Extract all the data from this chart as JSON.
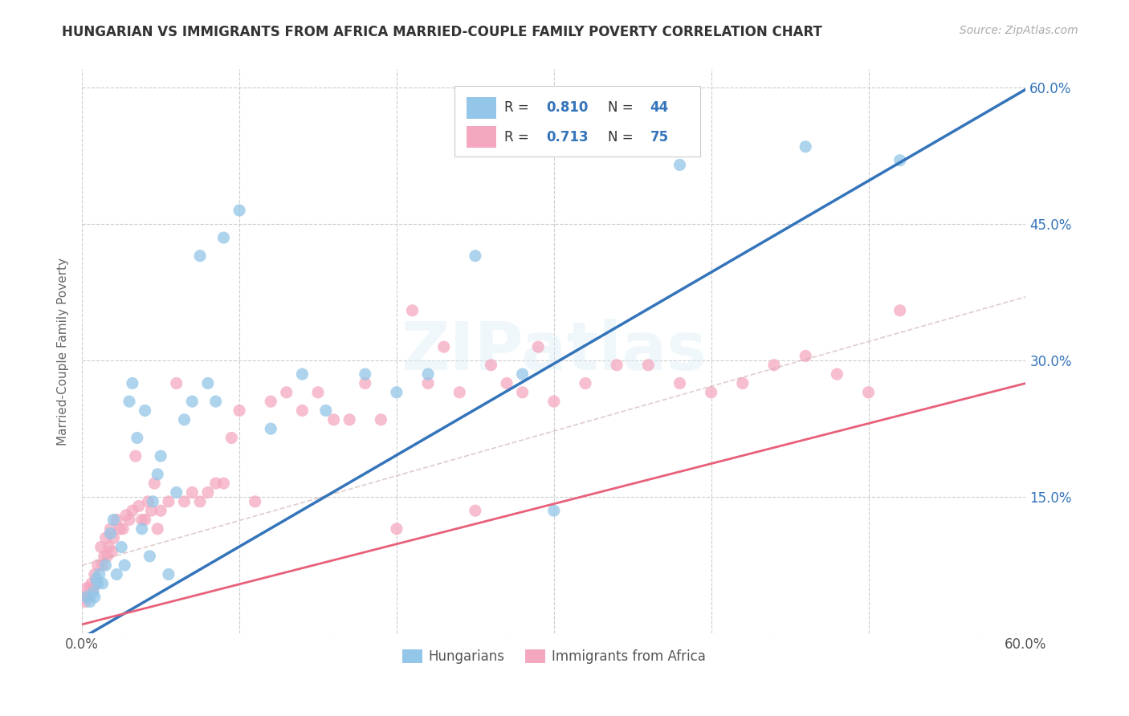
{
  "title": "HUNGARIAN VS IMMIGRANTS FROM AFRICA MARRIED-COUPLE FAMILY POVERTY CORRELATION CHART",
  "source": "Source: ZipAtlas.com",
  "ylabel": "Married-Couple Family Poverty",
  "xlim": [
    0,
    0.6
  ],
  "ylim": [
    0,
    0.62
  ],
  "x_ticks": [
    0.0,
    0.1,
    0.2,
    0.3,
    0.4,
    0.5,
    0.6
  ],
  "x_tick_labels": [
    "0.0%",
    "",
    "",
    "",
    "",
    "",
    "60.0%"
  ],
  "y_ticks": [
    0.0,
    0.15,
    0.3,
    0.45,
    0.6
  ],
  "y_tick_labels_right": [
    "",
    "15.0%",
    "30.0%",
    "45.0%",
    "60.0%"
  ],
  "grid_color": "#cccccc",
  "background_color": "#ffffff",
  "watermark": "ZIPatlas",
  "blue_color": "#93c6e8",
  "pink_color": "#f4a8c0",
  "blue_line_color": "#3474ba",
  "pink_line_color": "#e8607a",
  "blue_scatter_x": [
    0.003,
    0.005,
    0.007,
    0.008,
    0.009,
    0.01,
    0.011,
    0.013,
    0.015,
    0.018,
    0.02,
    0.022,
    0.025,
    0.027,
    0.03,
    0.032,
    0.035,
    0.038,
    0.04,
    0.043,
    0.045,
    0.048,
    0.05,
    0.055,
    0.06,
    0.065,
    0.07,
    0.075,
    0.08,
    0.085,
    0.09,
    0.1,
    0.12,
    0.14,
    0.155,
    0.18,
    0.2,
    0.22,
    0.25,
    0.28,
    0.3,
    0.38,
    0.46,
    0.52
  ],
  "blue_scatter_y": [
    0.04,
    0.035,
    0.045,
    0.04,
    0.06,
    0.055,
    0.065,
    0.055,
    0.075,
    0.11,
    0.125,
    0.065,
    0.095,
    0.075,
    0.255,
    0.275,
    0.215,
    0.115,
    0.245,
    0.085,
    0.145,
    0.175,
    0.195,
    0.065,
    0.155,
    0.235,
    0.255,
    0.415,
    0.275,
    0.255,
    0.435,
    0.465,
    0.225,
    0.285,
    0.245,
    0.285,
    0.265,
    0.285,
    0.415,
    0.285,
    0.135,
    0.515,
    0.535,
    0.52
  ],
  "pink_scatter_x": [
    0.001,
    0.002,
    0.003,
    0.004,
    0.005,
    0.006,
    0.007,
    0.008,
    0.009,
    0.01,
    0.012,
    0.013,
    0.014,
    0.015,
    0.016,
    0.017,
    0.018,
    0.019,
    0.02,
    0.022,
    0.024,
    0.026,
    0.028,
    0.03,
    0.032,
    0.034,
    0.036,
    0.038,
    0.04,
    0.042,
    0.044,
    0.046,
    0.048,
    0.05,
    0.055,
    0.06,
    0.065,
    0.07,
    0.075,
    0.08,
    0.085,
    0.09,
    0.095,
    0.1,
    0.11,
    0.12,
    0.13,
    0.14,
    0.15,
    0.16,
    0.17,
    0.18,
    0.19,
    0.2,
    0.21,
    0.22,
    0.23,
    0.24,
    0.25,
    0.26,
    0.27,
    0.28,
    0.29,
    0.3,
    0.32,
    0.34,
    0.36,
    0.38,
    0.4,
    0.42,
    0.44,
    0.46,
    0.48,
    0.5,
    0.52
  ],
  "pink_scatter_y": [
    0.04,
    0.035,
    0.05,
    0.04,
    0.05,
    0.055,
    0.048,
    0.065,
    0.055,
    0.075,
    0.095,
    0.075,
    0.085,
    0.105,
    0.085,
    0.095,
    0.115,
    0.09,
    0.105,
    0.125,
    0.115,
    0.115,
    0.13,
    0.125,
    0.135,
    0.195,
    0.14,
    0.125,
    0.125,
    0.145,
    0.135,
    0.165,
    0.115,
    0.135,
    0.145,
    0.275,
    0.145,
    0.155,
    0.145,
    0.155,
    0.165,
    0.165,
    0.215,
    0.245,
    0.145,
    0.255,
    0.265,
    0.245,
    0.265,
    0.235,
    0.235,
    0.275,
    0.235,
    0.115,
    0.355,
    0.275,
    0.315,
    0.265,
    0.135,
    0.295,
    0.275,
    0.265,
    0.315,
    0.255,
    0.275,
    0.295,
    0.295,
    0.275,
    0.265,
    0.275,
    0.295,
    0.305,
    0.285,
    0.265,
    0.355
  ],
  "blue_line_x": [
    0.0,
    0.6
  ],
  "blue_line_y": [
    -0.005,
    0.598
  ],
  "pink_line_x": [
    0.0,
    0.6
  ],
  "pink_line_y": [
    0.01,
    0.275
  ],
  "dashed_line_x": [
    0.0,
    0.6
  ],
  "dashed_line_y": [
    0.075,
    0.37
  ],
  "legend_labels": [
    "Hungarians",
    "Immigrants from Africa"
  ],
  "legend_r1": "0.810",
  "legend_n1": "44",
  "legend_r2": "0.713",
  "legend_n2": "75"
}
